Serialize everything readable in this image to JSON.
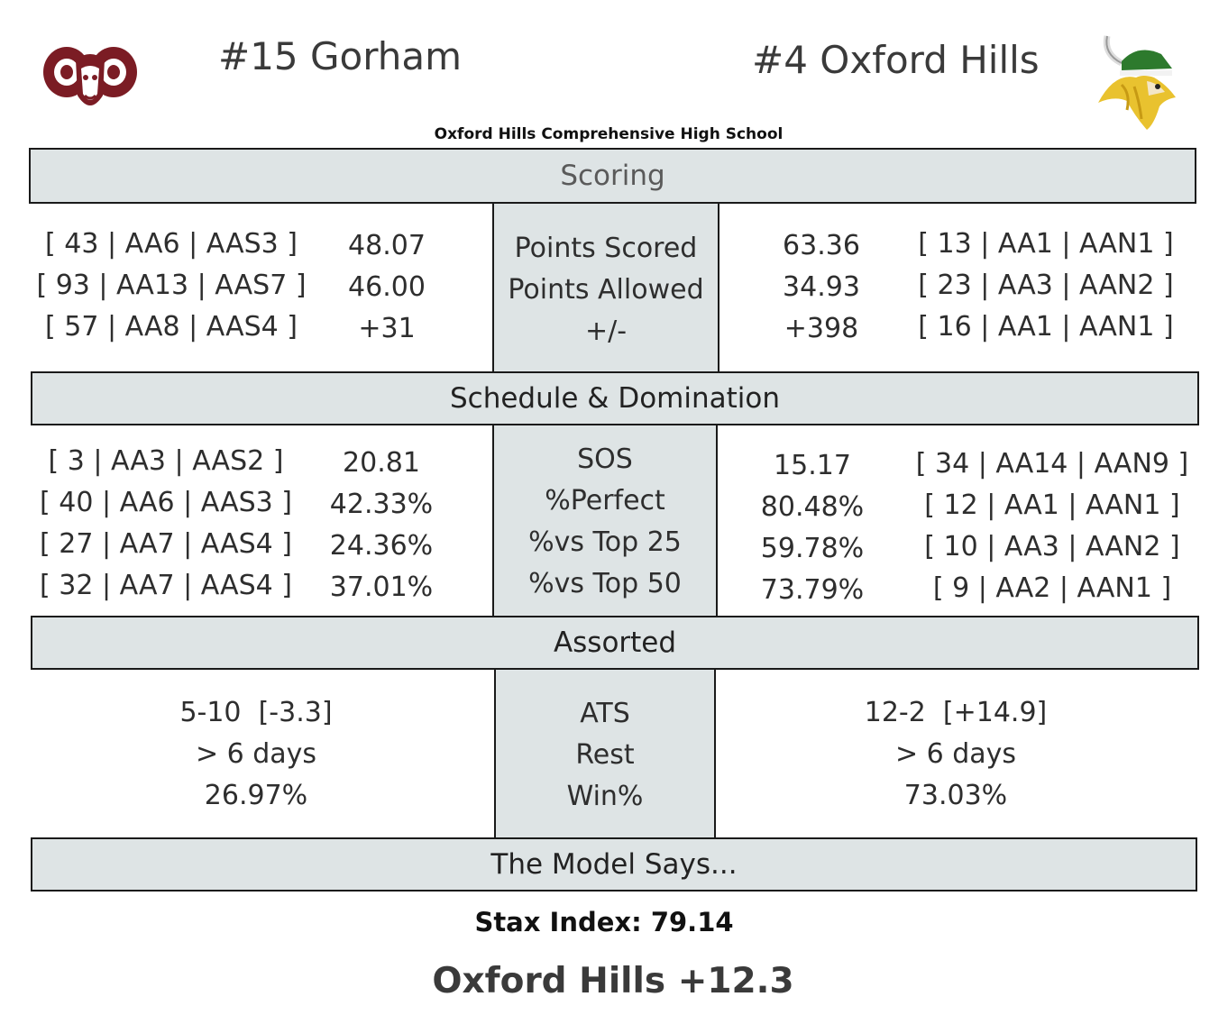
{
  "teams": {
    "home": {
      "name": "#15 Gorham",
      "logo": "ram-icon",
      "logo_color": "#7b1c24"
    },
    "away": {
      "name": "#4 Oxford Hills",
      "logo": "viking-icon",
      "logo_color": "#2d7a2d"
    }
  },
  "venue": "Oxford Hills Comprehensive High School",
  "sections": {
    "scoring": {
      "title": "Scoring",
      "labels": [
        "Points Scored",
        "Points Allowed",
        "+/-"
      ],
      "home_ranks": [
        "[ 43 | AA6 | AAS3 ]",
        "[ 93 | AA13 | AAS7 ]",
        "[ 57 | AA8 | AAS4 ]"
      ],
      "home_values": [
        "48.07",
        "46.00",
        "+31"
      ],
      "away_values": [
        "63.36",
        "34.93",
        "+398"
      ],
      "away_ranks": [
        "[ 13 | AA1 | AAN1 ]",
        "[ 23 | AA3 | AAN2 ]",
        "[ 16 | AA1 | AAN1 ]"
      ]
    },
    "schedule": {
      "title": "Schedule & Domination",
      "labels": [
        "SOS",
        "%Perfect",
        "%vs Top 25",
        "%vs Top 50"
      ],
      "home_ranks": [
        "[ 3 | AA3 | AAS2 ]",
        "[ 40 | AA6 | AAS3 ]",
        "[ 27 | AA7 | AAS4 ]",
        "[ 32 | AA7 | AAS4 ]"
      ],
      "home_values": [
        "20.81",
        "42.33%",
        "24.36%",
        "37.01%"
      ],
      "away_values": [
        "15.17",
        "80.48%",
        "59.78%",
        "73.79%"
      ],
      "away_ranks": [
        "[ 34 | AA14 | AAN9 ]",
        "[ 12 | AA1 | AAN1 ]",
        "[ 10 | AA3 | AAN2 ]",
        "[ 9 | AA2 | AAN1 ]"
      ]
    },
    "assorted": {
      "title": "Assorted",
      "labels": [
        "ATS",
        "Rest",
        "Win%"
      ],
      "home_values": [
        "5-10  [-3.3]",
        "> 6 days",
        "26.97%"
      ],
      "away_values": [
        "12-2  [+14.9]",
        "> 6 days",
        "73.03%"
      ]
    },
    "model": {
      "title": "The Model Says...",
      "stax_index": "Stax Index: 79.14",
      "prediction": "Oxford Hills +12.3"
    }
  },
  "colors": {
    "bar_fill": "#dee4e5",
    "border": "#1a1a1a"
  }
}
